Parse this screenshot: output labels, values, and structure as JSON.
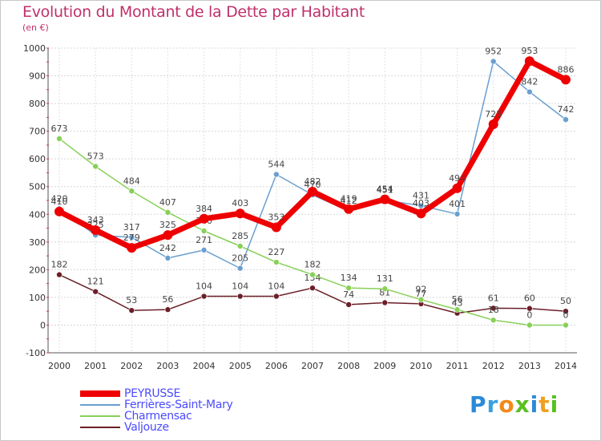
{
  "title": "Evolution du Montant de la Dette par Habitant",
  "subtitle": "(en €)",
  "logo": "Proxiti",
  "chart_data": {
    "type": "line",
    "title": "Evolution du Montant de la Dette par Habitant",
    "ylabel": "(en €)",
    "x": [
      "2000",
      "2001",
      "2002",
      "2003",
      "2004",
      "2005",
      "2006",
      "2007",
      "2008",
      "2009",
      "2010",
      "2011",
      "2012",
      "2013",
      "2014"
    ],
    "ylim": [
      -100,
      1000
    ],
    "yticks": [
      "-100",
      "0",
      "100",
      "200",
      "300",
      "400",
      "500",
      "600",
      "700",
      "800",
      "900",
      "1000"
    ],
    "grid": true,
    "legend_position": "bottom-left",
    "series": [
      {
        "name": "Valjouze",
        "color": "#6b1f28",
        "values": [
          182,
          121,
          53,
          56,
          104,
          104,
          104,
          134,
          74,
          81,
          77,
          43,
          61,
          60,
          50
        ]
      },
      {
        "name": "Charmensac",
        "color": "#88d058",
        "values": [
          673,
          573,
          484,
          407,
          340,
          285,
          227,
          182,
          134,
          131,
          92,
          56,
          18,
          0,
          0
        ]
      },
      {
        "name": "Ferrières-Saint-Mary",
        "color": "#6a9fd0",
        "values": [
          420,
          325,
          317,
          242,
          271,
          205,
          544,
          470,
          412,
          451,
          431,
          401,
          952,
          842,
          742
        ]
      },
      {
        "name": "PEYRUSSE",
        "color": "#ee0000",
        "values": [
          410,
          343,
          279,
          325,
          384,
          403,
          353,
          482,
          419,
          454,
          403,
          494,
          725,
          953,
          886
        ]
      }
    ]
  }
}
